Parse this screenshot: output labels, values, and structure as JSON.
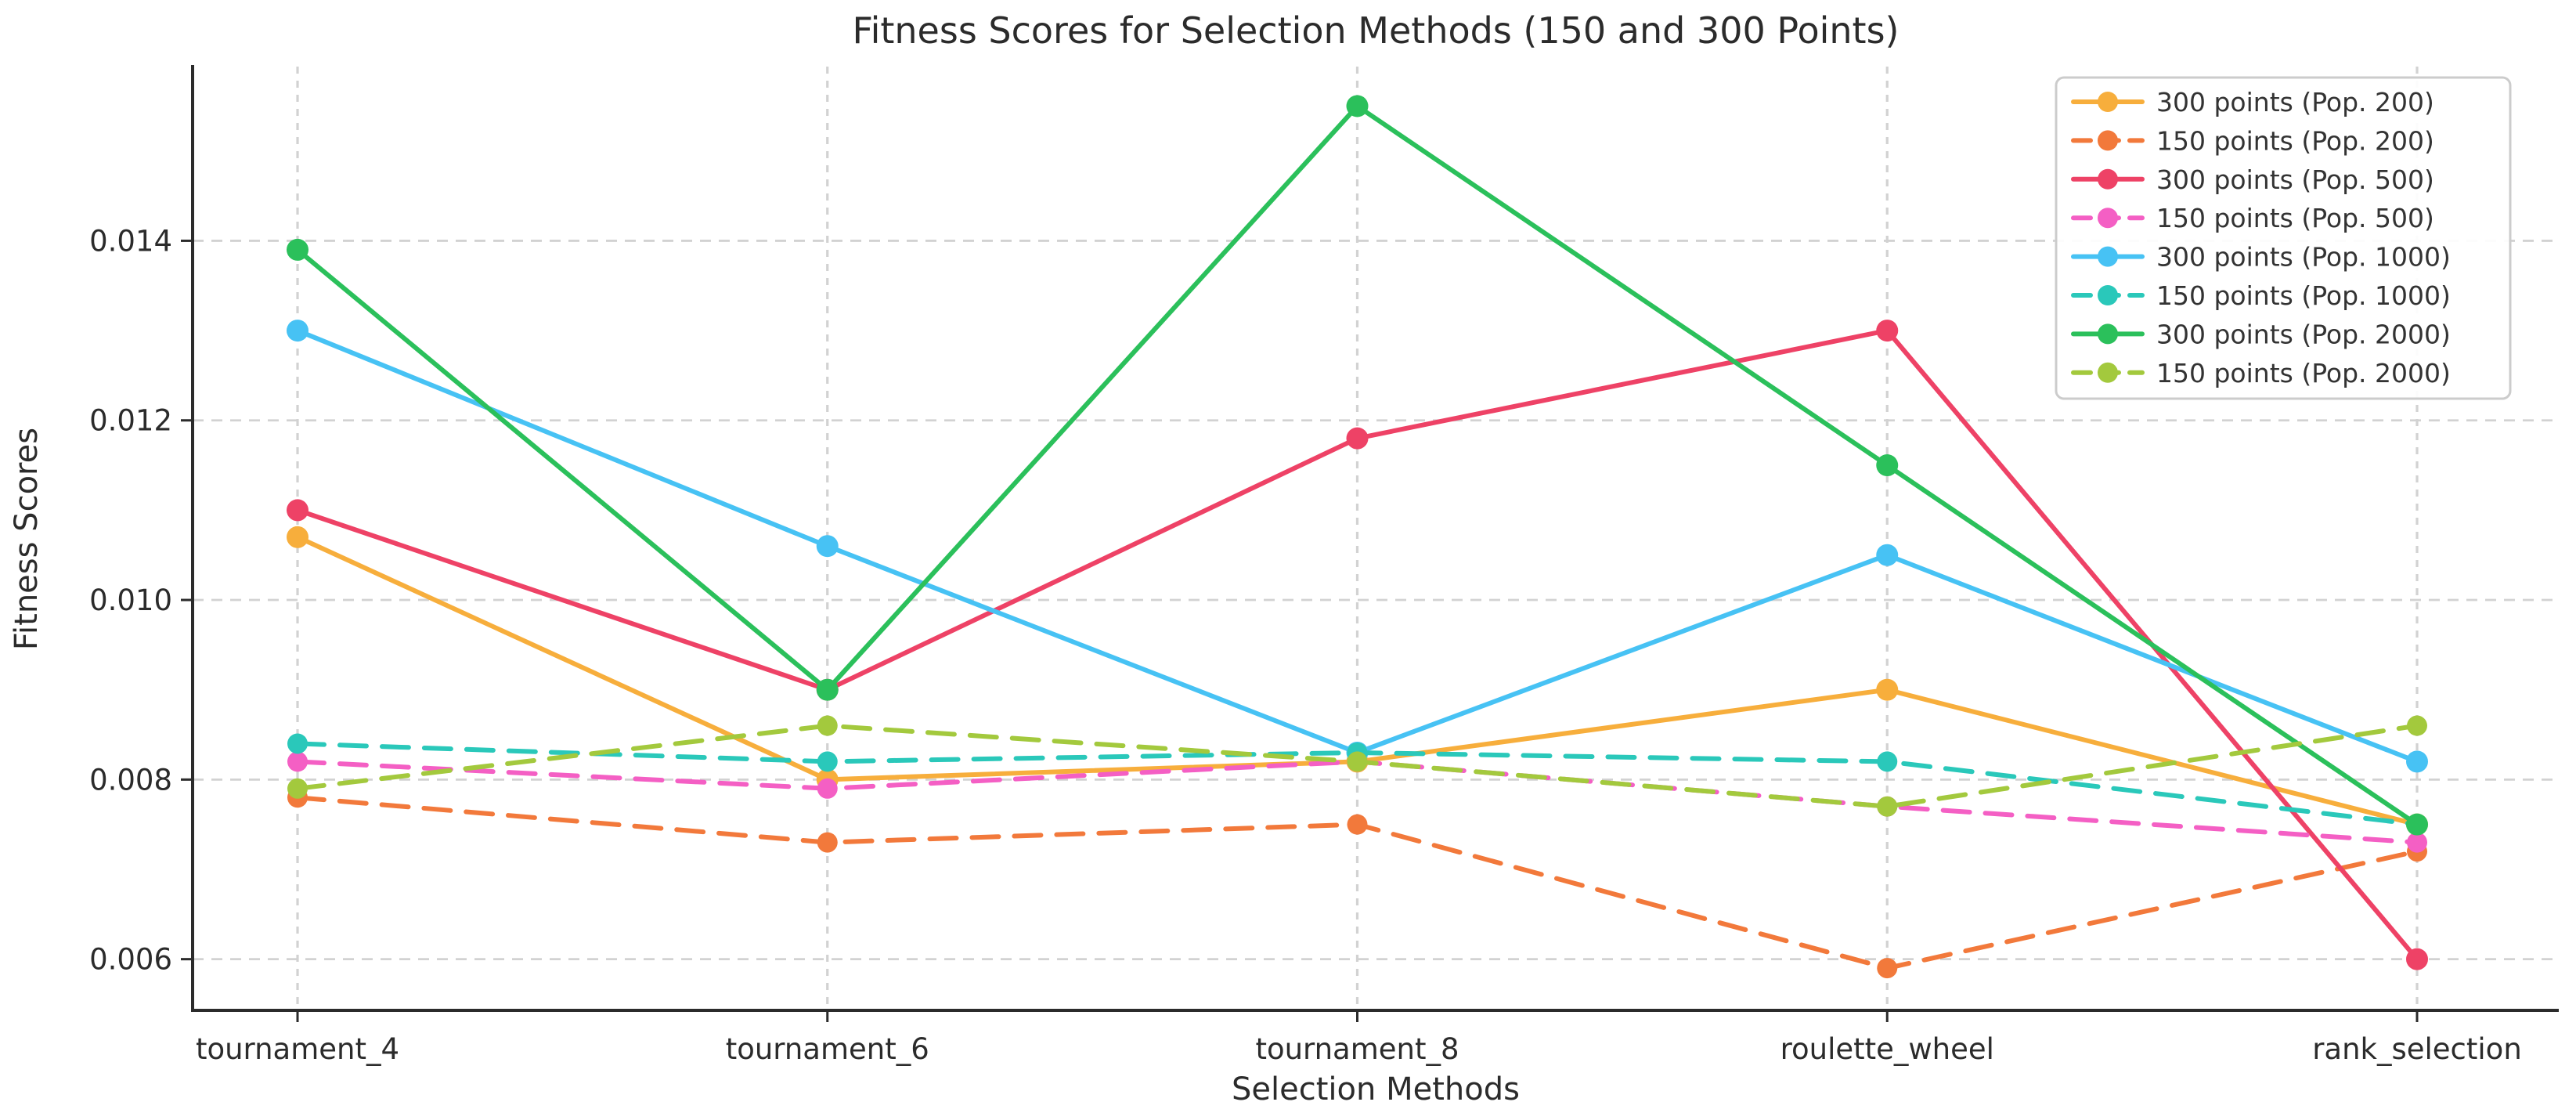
{
  "figure": {
    "background": "#ffffff"
  },
  "colors": {
    "text": "#2b2b2b",
    "grid": "#d2d2d2",
    "spine": "#2b2b2b",
    "legend_border": "#cccccc",
    "legend_fill": "#ffffff"
  },
  "chart_data": {
    "type": "line",
    "title": "Fitness Scores for Selection Methods (150 and 300 Points)",
    "xlabel": "Selection Methods",
    "ylabel": "Fitness Scores",
    "categories": [
      "tournament_4",
      "tournament_6",
      "tournament_8",
      "roulette_wheel",
      "rank_selection"
    ],
    "yticks": [
      0.006,
      0.008,
      0.01,
      0.012,
      0.014
    ],
    "ytick_labels": [
      "0.006",
      "0.008",
      "0.010",
      "0.012",
      "0.014"
    ],
    "ylim": [
      0.00543,
      0.01594
    ],
    "grid": true,
    "legend_position": "upper right",
    "series": [
      {
        "name": "300 points (Pop. 200)",
        "color": "#F7AE3C",
        "style": "solid",
        "values": [
          0.0107,
          0.008,
          0.0082,
          0.009,
          0.0075
        ]
      },
      {
        "name": "150 points (Pop. 200)",
        "color": "#F2793B",
        "style": "dashed",
        "values": [
          0.0078,
          0.0073,
          0.0075,
          0.0059,
          0.0072
        ]
      },
      {
        "name": "300 points (Pop. 500)",
        "color": "#EE4266",
        "style": "solid",
        "values": [
          0.011,
          0.009,
          0.0118,
          0.013,
          0.006
        ]
      },
      {
        "name": "150 points (Pop. 500)",
        "color": "#F45FC4",
        "style": "dashed",
        "values": [
          0.0082,
          0.0079,
          0.0082,
          0.0077,
          0.0073
        ]
      },
      {
        "name": "300 points (Pop. 1000)",
        "color": "#47C2F4",
        "style": "solid",
        "values": [
          0.013,
          0.0106,
          0.0083,
          0.0105,
          0.0082
        ]
      },
      {
        "name": "150 points (Pop. 1000)",
        "color": "#2AC8BA",
        "style": "dashed",
        "values": [
          0.0084,
          0.0082,
          0.0083,
          0.0082,
          0.0075
        ]
      },
      {
        "name": "300 points (Pop. 2000)",
        "color": "#2BC05B",
        "style": "solid",
        "values": [
          0.0139,
          0.009,
          0.0155,
          0.0115,
          0.0075
        ]
      },
      {
        "name": "150 points (Pop. 2000)",
        "color": "#A3C93D",
        "style": "dashed",
        "values": [
          0.0079,
          0.0086,
          0.0082,
          0.0077,
          0.0086
        ]
      }
    ]
  }
}
